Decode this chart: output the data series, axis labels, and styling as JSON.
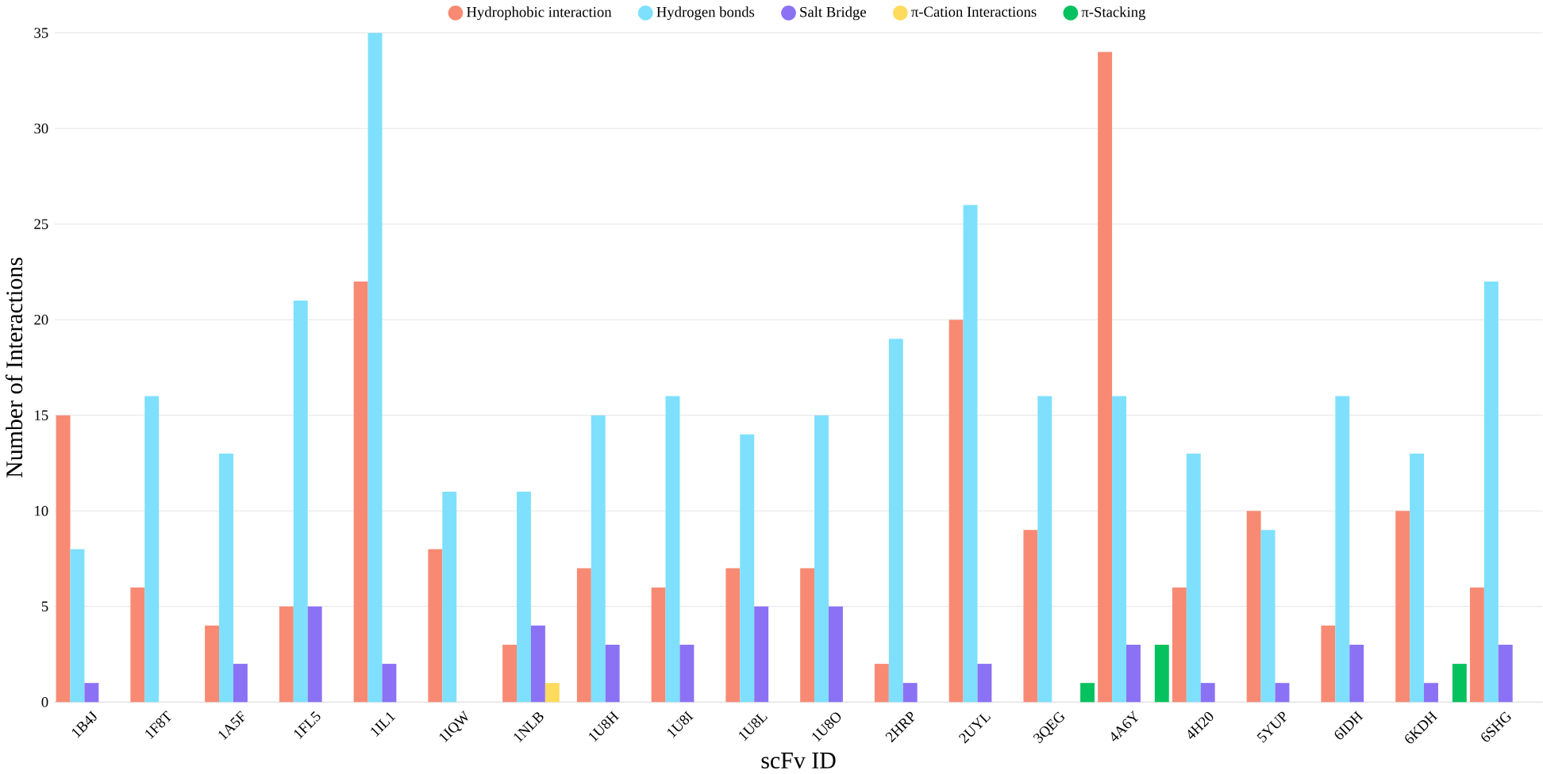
{
  "chart_data": {
    "type": "bar",
    "xlabel": "scFv ID",
    "ylabel": "Number of Interactions",
    "categories": [
      "1B4J",
      "1F8T",
      "1A5F",
      "1FL5",
      "1IL1",
      "1IQW",
      "1NLB",
      "1U8H",
      "1U8I",
      "1U8L",
      "1U8O",
      "2HRP",
      "2UYL",
      "3QEG",
      "4A6Y",
      "4H20",
      "5YUP",
      "6IDH",
      "6KDH",
      "6SHG"
    ],
    "series": [
      {
        "name": "Hydrophobic interaction",
        "color": "#f88a74",
        "values": [
          15,
          6,
          4,
          5,
          22,
          8,
          3,
          7,
          6,
          7,
          7,
          2,
          20,
          9,
          34,
          6,
          10,
          4,
          10,
          6
        ]
      },
      {
        "name": "Hydrogen bonds",
        "color": "#7ee0fd",
        "values": [
          8,
          16,
          13,
          21,
          35,
          11,
          11,
          15,
          16,
          14,
          15,
          19,
          26,
          16,
          16,
          13,
          9,
          16,
          13,
          22
        ]
      },
      {
        "name": "Salt Bridge",
        "color": "#8b72f4",
        "values": [
          1,
          0,
          2,
          5,
          2,
          0,
          4,
          3,
          3,
          5,
          5,
          1,
          2,
          0,
          3,
          1,
          1,
          3,
          1,
          3
        ]
      },
      {
        "name": "π-Cation Interactions",
        "color": "#fedb5c",
        "values": [
          0,
          0,
          0,
          0,
          0,
          0,
          1,
          0,
          0,
          0,
          0,
          0,
          0,
          0,
          0,
          0,
          0,
          0,
          0,
          0
        ]
      },
      {
        "name": "π-Stacking",
        "color": "#06c25e",
        "values": [
          0,
          0,
          0,
          0,
          0,
          0,
          0,
          0,
          0,
          0,
          0,
          0,
          0,
          1,
          3,
          0,
          0,
          0,
          2,
          0
        ]
      }
    ],
    "ylim": [
      0,
      35
    ],
    "yticks": [
      0,
      5,
      10,
      15,
      20,
      25,
      30,
      35
    ],
    "grid": "y",
    "legend": "top"
  }
}
